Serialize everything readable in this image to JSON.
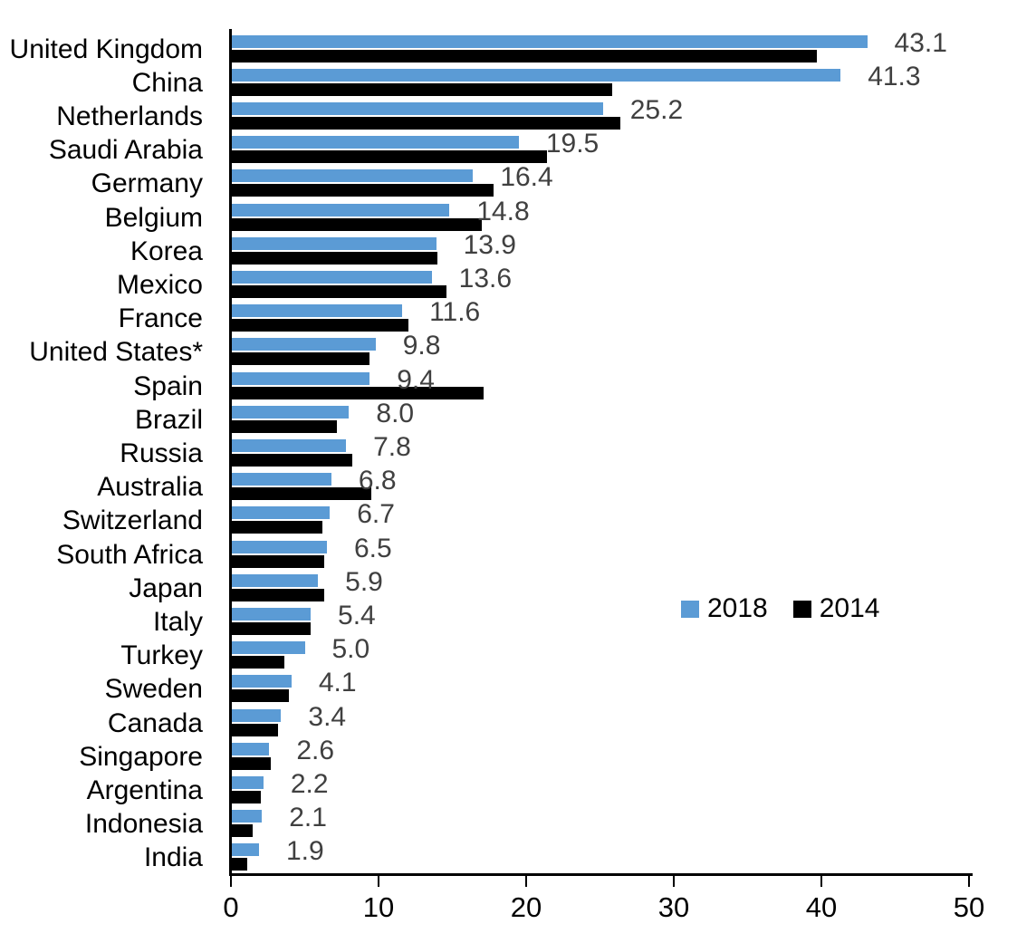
{
  "chart_data": {
    "type": "bar",
    "orientation": "horizontal",
    "title": "",
    "categories": [
      "United Kingdom",
      "China",
      "Netherlands",
      "Saudi Arabia",
      "Germany",
      "Belgium",
      "Korea",
      "Mexico",
      "France",
      "United States*",
      "Spain",
      "Brazil",
      "Russia",
      "Australia",
      "Switzerland",
      "South Africa",
      "Japan",
      "Italy",
      "Turkey",
      "Sweden",
      "Canada",
      "Singapore",
      "Argentina",
      "Indonesia",
      "India"
    ],
    "series": [
      {
        "name": "2018",
        "color": "#5B9BD5",
        "values": [
          43.1,
          41.3,
          25.2,
          19.5,
          16.4,
          14.8,
          13.9,
          13.6,
          11.6,
          9.8,
          9.4,
          8.0,
          7.8,
          6.8,
          6.7,
          6.5,
          5.9,
          5.4,
          5.0,
          4.1,
          3.4,
          2.6,
          2.2,
          2.1,
          1.9
        ]
      },
      {
        "name": "2014",
        "color": "#000000",
        "values": [
          39.7,
          25.8,
          26.4,
          21.4,
          17.8,
          17.0,
          14.0,
          14.6,
          12.0,
          9.4,
          17.1,
          7.2,
          8.2,
          9.5,
          6.2,
          6.3,
          6.3,
          5.4,
          3.6,
          3.9,
          3.2,
          2.7,
          2.0,
          1.5,
          1.1
        ]
      }
    ],
    "value_labels": [
      "43.1",
      "41.3",
      "25.2",
      "19.5",
      "16.4",
      "14.8",
      "13.9",
      "13.6",
      "11.6",
      "9.8",
      "9.4",
      "8.0",
      "7.8",
      "6.8",
      "6.7",
      "6.5",
      "5.9",
      "5.4",
      "5.0",
      "4.1",
      "3.4",
      "2.6",
      "2.2",
      "2.1",
      "1.9"
    ],
    "xlim": [
      0,
      50
    ],
    "x_ticks": [
      "0",
      "10",
      "20",
      "30",
      "40",
      "50"
    ],
    "grid": false,
    "legend": {
      "entries": [
        "2018",
        "2014"
      ],
      "position": "center-right"
    }
  },
  "colors": {
    "series_2018": "#5B9BD5",
    "series_2014": "#000000",
    "value_label": "#404040",
    "axis": "#000000",
    "background": "#FFFFFF"
  }
}
